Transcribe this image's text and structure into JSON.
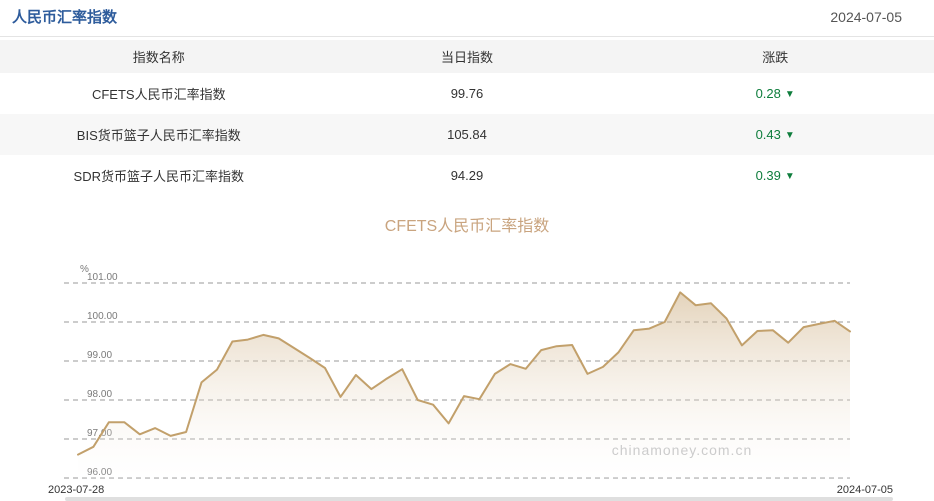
{
  "header": {
    "title": "人民币汇率指数",
    "date": "2024-07-05"
  },
  "table": {
    "columns": {
      "name": "指数名称",
      "value": "当日指数",
      "change": "涨跌"
    },
    "rows": [
      {
        "name": "CFETS人民币汇率指数",
        "value": "99.76",
        "change": "0.28",
        "direction": "down",
        "direction_symbol": "▼"
      },
      {
        "name": "BIS货币篮子人民币汇率指数",
        "value": "105.84",
        "change": "0.43",
        "direction": "down",
        "direction_symbol": "▼"
      },
      {
        "name": "SDR货币篮子人民币汇率指数",
        "value": "94.29",
        "change": "0.39",
        "direction": "down",
        "direction_symbol": "▼"
      }
    ]
  },
  "chart_data": {
    "type": "area",
    "title": "CFETS人民币汇率指数",
    "unit": "%",
    "x_start": "2023-07-28",
    "x_end": "2024-07-05",
    "y_ticks": [
      101,
      100,
      99,
      98,
      97,
      96
    ],
    "ylim": [
      96,
      101.5
    ],
    "grid": "dashed",
    "watermark": "chinamoney.com.cn",
    "values": [
      96.6,
      96.8,
      97.43,
      97.43,
      97.12,
      97.28,
      97.08,
      97.18,
      98.45,
      98.78,
      99.5,
      99.55,
      99.67,
      99.58,
      99.33,
      99.08,
      98.82,
      98.08,
      98.64,
      98.28,
      98.55,
      98.79,
      98.0,
      97.88,
      97.4,
      98.1,
      98.02,
      98.67,
      98.92,
      98.8,
      99.28,
      99.38,
      99.41,
      98.67,
      98.85,
      99.22,
      99.79,
      99.83,
      100.0,
      100.76,
      100.43,
      100.48,
      100.09,
      99.4,
      99.77,
      99.79,
      99.47,
      99.87,
      99.95,
      100.03,
      99.76
    ],
    "colors": {
      "line": "#c2a06b",
      "fill_top": "#c9a878",
      "grid": "#9a9a9a",
      "tick_label": "#7a7a7a",
      "watermark": "#cccccc"
    }
  }
}
